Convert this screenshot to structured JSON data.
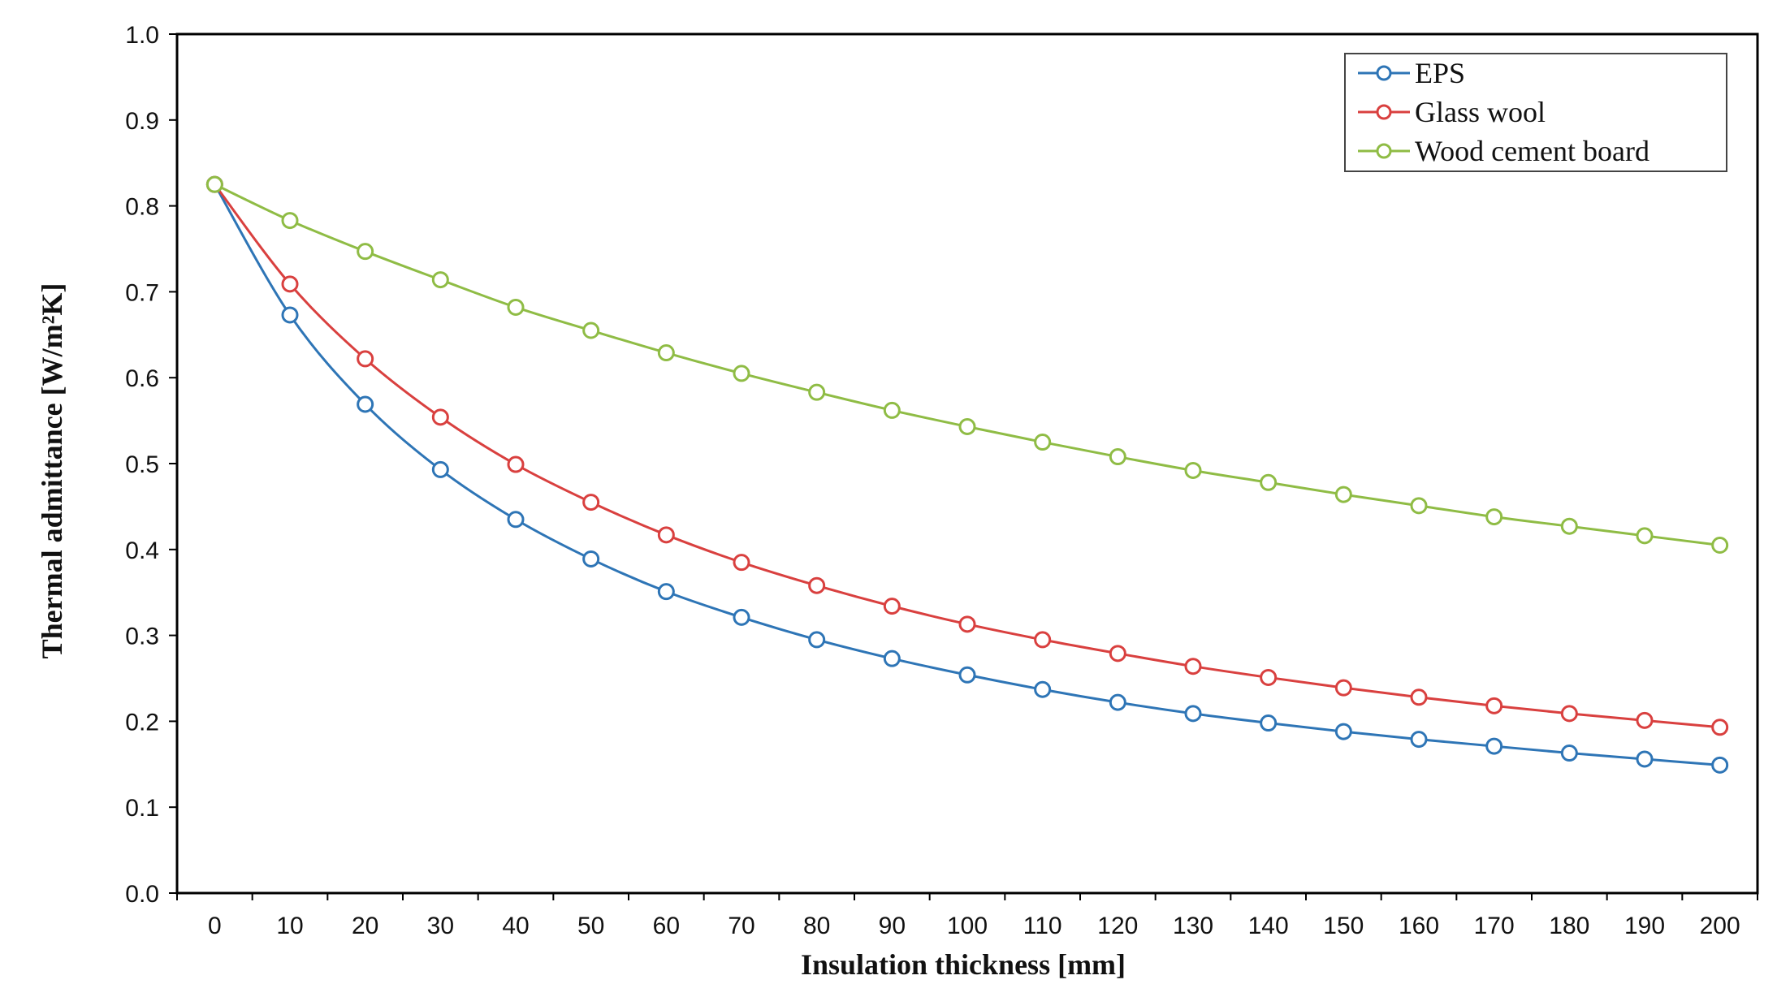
{
  "chart_data": {
    "type": "line",
    "title": "",
    "xlabel": "Insulation thickness [mm]",
    "ylabel": "Thermal admittance [W/m²K]",
    "x": [
      0,
      10,
      20,
      30,
      40,
      50,
      60,
      70,
      80,
      90,
      100,
      110,
      120,
      130,
      140,
      150,
      160,
      170,
      180,
      190,
      200
    ],
    "xlim": [
      -5,
      205
    ],
    "ylim": [
      0.0,
      1.0
    ],
    "yticks": [
      "0.0",
      "0.1",
      "0.2",
      "0.3",
      "0.4",
      "0.5",
      "0.6",
      "0.7",
      "0.8",
      "0.9",
      "1.0"
    ],
    "xticks": [
      "0",
      "10",
      "20",
      "30",
      "40",
      "50",
      "60",
      "70",
      "80",
      "90",
      "100",
      "110",
      "120",
      "130",
      "140",
      "150",
      "160",
      "170",
      "180",
      "190",
      "200"
    ],
    "grid": false,
    "legend_position": "top-right",
    "series": [
      {
        "name": "EPS",
        "color": "#2e75b6",
        "marker": "circle",
        "values": [
          0.825,
          0.673,
          0.569,
          0.493,
          0.435,
          0.389,
          0.351,
          0.321,
          0.295,
          0.273,
          0.254,
          0.237,
          0.222,
          0.209,
          0.198,
          0.188,
          0.179,
          0.171,
          0.163,
          0.156,
          0.149
        ]
      },
      {
        "name": "Glass wool",
        "color": "#d9403f",
        "marker": "circle",
        "values": [
          0.825,
          0.709,
          0.622,
          0.554,
          0.499,
          0.455,
          0.417,
          0.385,
          0.358,
          0.334,
          0.313,
          0.295,
          0.279,
          0.264,
          0.251,
          0.239,
          0.228,
          0.218,
          0.209,
          0.201,
          0.193
        ]
      },
      {
        "name": "Wood cement board",
        "color": "#8fbc45",
        "marker": "circle",
        "values": [
          0.825,
          0.783,
          0.747,
          0.714,
          0.682,
          0.655,
          0.629,
          0.605,
          0.583,
          0.562,
          0.543,
          0.525,
          0.508,
          0.492,
          0.478,
          0.464,
          0.451,
          0.438,
          0.427,
          0.416,
          0.405
        ]
      }
    ]
  }
}
